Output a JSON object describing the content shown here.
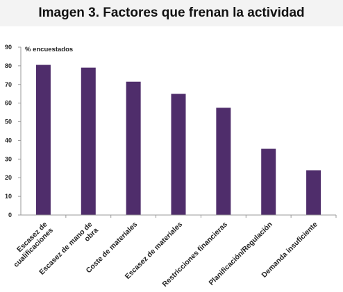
{
  "title": "Imagen 3. Factores que frenan la actividad",
  "colors": {
    "bar": "#4f2d6b",
    "axis": "#999999",
    "title_band": "#f3f3f3"
  },
  "chart_data": {
    "type": "bar",
    "title": "Imagen 3. Factores que frenan la actividad",
    "ylabel": "% encuestados",
    "xlabel": "",
    "ylim": [
      0,
      90
    ],
    "yticks": [
      0,
      10,
      20,
      30,
      40,
      50,
      60,
      70,
      80,
      90
    ],
    "grid": false,
    "legend": "none",
    "categories": [
      [
        "Escasez de",
        "cualificaciones"
      ],
      [
        "Escasez de mano de",
        "obra"
      ],
      [
        "Coste de materiales"
      ],
      [
        "Escasez de materiales"
      ],
      [
        "Restricciones financieras"
      ],
      [
        "Planificación/Regulación"
      ],
      [
        "Demanda insuficiente"
      ]
    ],
    "values": [
      80.5,
      79,
      71.5,
      65,
      57.5,
      35.5,
      24
    ]
  }
}
